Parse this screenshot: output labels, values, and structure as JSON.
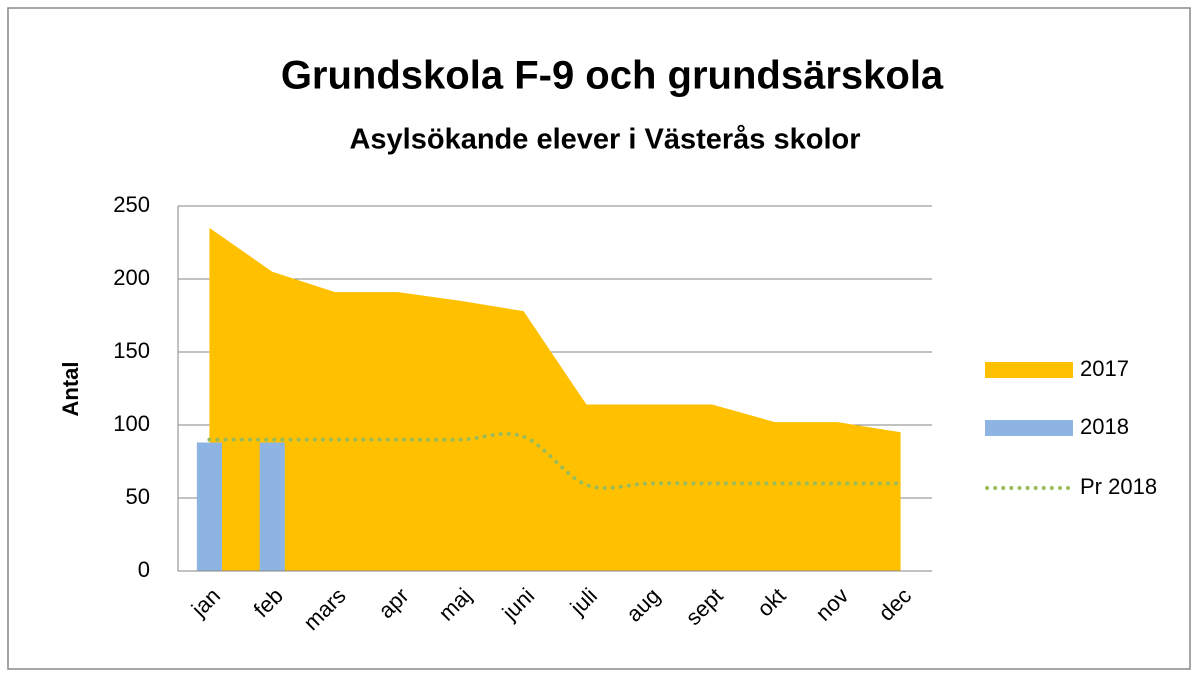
{
  "chart_data": {
    "type": "combo",
    "title": "Grundskola F-9 och grundsärskola",
    "subtitle": "Asylsökande elever i Västerås skolor",
    "y_label": "Antal",
    "categories": [
      "jan",
      "feb",
      "mars",
      "apr",
      "maj",
      "juni",
      "juli",
      "aug",
      "sept",
      "okt",
      "nov",
      "dec"
    ],
    "series": [
      {
        "name": "2017",
        "type": "area",
        "color": "#ffc000",
        "values": [
          235,
          205,
          191,
          191,
          185,
          178,
          114,
          114,
          114,
          102,
          102,
          95
        ]
      },
      {
        "name": "2018",
        "type": "bar",
        "color": "#8eb4e3",
        "values": [
          88,
          88,
          null,
          null,
          null,
          null,
          null,
          null,
          null,
          null,
          null,
          null
        ]
      },
      {
        "name": "Pr 2018",
        "type": "line",
        "style": "dotted",
        "smooth": true,
        "color": "#9bbb59",
        "values": [
          90,
          90,
          90,
          90,
          90,
          92,
          59,
          60,
          60,
          60,
          60,
          60
        ]
      }
    ],
    "ylim": [
      0,
      250
    ],
    "yticks": [
      0,
      50,
      100,
      150,
      200,
      250
    ],
    "grid": true,
    "legend": "right"
  }
}
